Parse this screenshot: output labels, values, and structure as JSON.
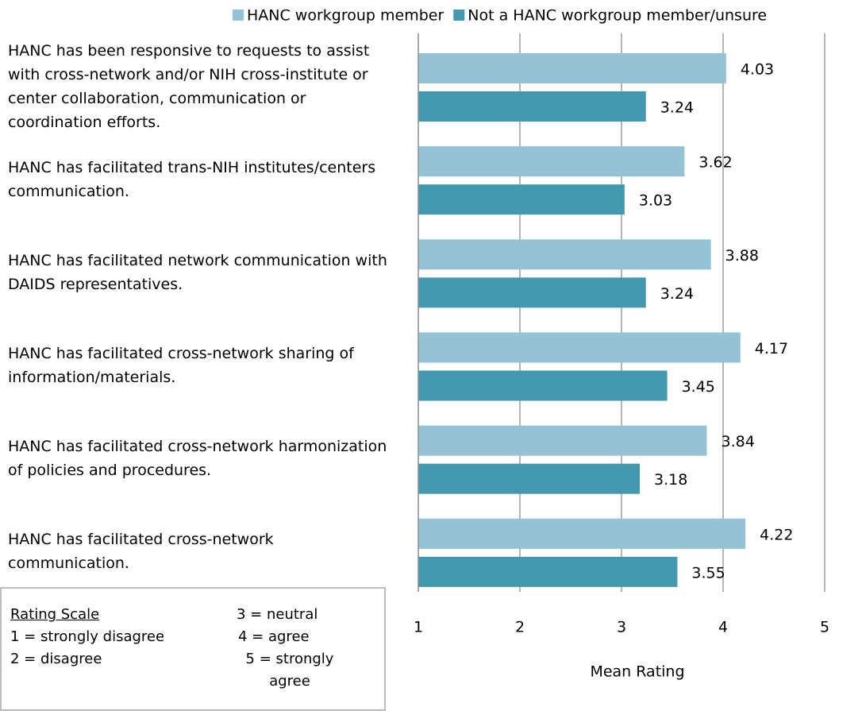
{
  "chart_data": {
    "type": "bar",
    "orientation": "horizontal",
    "categories": [
      "HANC has been responsive to requests to assist with cross-network and/or NIH cross-institute or center collaboration, communication or coordination efforts.",
      "HANC has facilitated trans-NIH institutes/centers communication.",
      "HANC has facilitated network communication with DAIDS representatives.",
      "HANC has facilitated cross-network sharing of information/materials.",
      "HANC has facilitated cross-network harmonization of policies and procedures.",
      "HANC has facilitated cross-network communication."
    ],
    "series": [
      {
        "name": "HANC workgroup member",
        "color": "#93c3d5",
        "values": [
          4.03,
          3.62,
          3.88,
          4.17,
          3.84,
          4.22
        ]
      },
      {
        "name": "Not a HANC workgroup member/unsure",
        "color": "#4298b1",
        "values": [
          3.24,
          3.03,
          3.24,
          3.45,
          3.18,
          3.55
        ]
      }
    ],
    "xlim": [
      1,
      5
    ],
    "xticks": [
      1,
      2,
      3,
      4,
      5
    ],
    "grid": true,
    "xlabel": "Mean Rating",
    "legend": "top",
    "rating_scale": {
      "title": "Rating Scale",
      "items": [
        "1 = strongly  disagree",
        "2 = disagree",
        "3 = neutral",
        "4 = agree",
        "5 = strongly agree"
      ]
    }
  }
}
